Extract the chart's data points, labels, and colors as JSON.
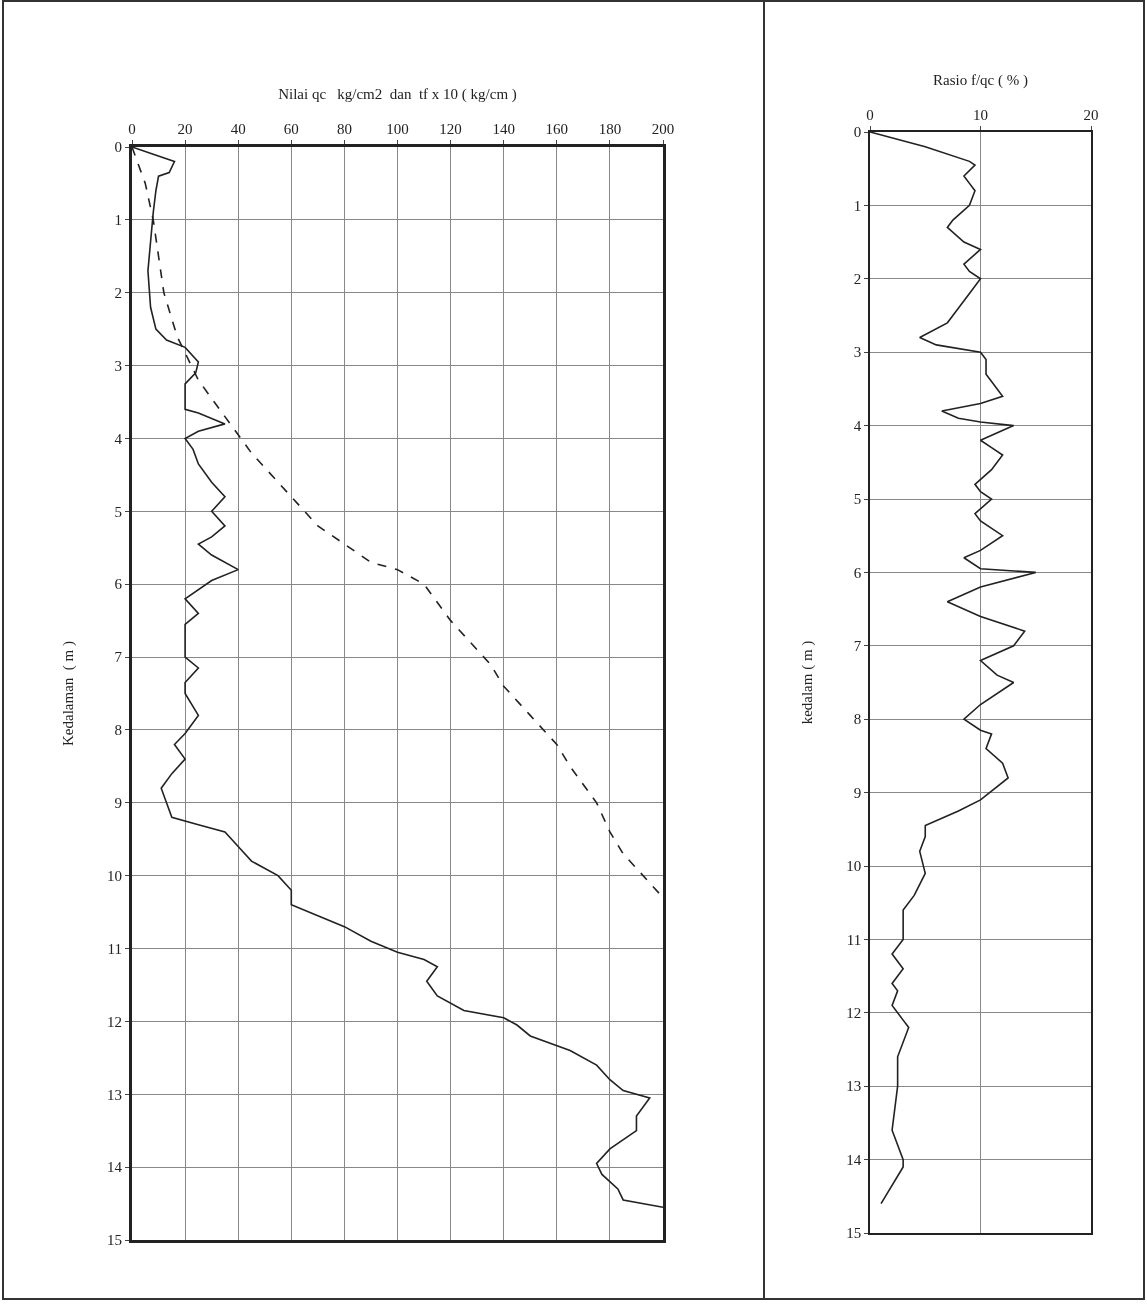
{
  "chart_data": [
    {
      "type": "line",
      "xlabel": "Nilai qc   kg/cm2  dan  tf x 10 ( kg/cm )",
      "ylabel": "Kedalaman  ( m )",
      "xlim": [
        0,
        200
      ],
      "xticks": [
        0,
        20,
        40,
        60,
        80,
        100,
        120,
        140,
        160,
        180,
        200
      ],
      "ylim": [
        15,
        0
      ],
      "yticks": [
        0,
        1,
        2,
        3,
        4,
        5,
        6,
        7,
        8,
        9,
        10,
        11,
        12,
        13,
        14,
        15
      ],
      "grid": true,
      "series": [
        {
          "color": "#222222",
          "line_style": "solid",
          "x": [
            0,
            8,
            16,
            14,
            10,
            9,
            8,
            7,
            6,
            7,
            9,
            13,
            20,
            25,
            24,
            20,
            20,
            25,
            35,
            25,
            20,
            23,
            25,
            30,
            35,
            30,
            35,
            30,
            25,
            30,
            40,
            30,
            20,
            25,
            20,
            20,
            25,
            20,
            20,
            25,
            20,
            16,
            20,
            15,
            11,
            13,
            15,
            25,
            35,
            40,
            45,
            55,
            60,
            60,
            70,
            80,
            90,
            100,
            110,
            115,
            111,
            115,
            125,
            140,
            145,
            150,
            165,
            175,
            180,
            185,
            195,
            190,
            190,
            180,
            175,
            177,
            183,
            185,
            200
          ],
          "values": [
            0,
            0.1,
            0.2,
            0.35,
            0.4,
            0.6,
            0.9,
            1.3,
            1.7,
            2.2,
            2.5,
            2.65,
            2.75,
            2.95,
            3.1,
            3.25,
            3.6,
            3.65,
            3.8,
            3.9,
            4.0,
            4.15,
            4.35,
            4.6,
            4.8,
            5.0,
            5.2,
            5.35,
            5.45,
            5.6,
            5.8,
            5.95,
            6.2,
            6.4,
            6.55,
            7.0,
            7.15,
            7.35,
            7.5,
            7.8,
            8.05,
            8.2,
            8.4,
            8.6,
            8.8,
            9.0,
            9.2,
            9.3,
            9.4,
            9.6,
            9.8,
            10.0,
            10.2,
            10.4,
            10.55,
            10.7,
            10.9,
            11.05,
            11.15,
            11.25,
            11.45,
            11.65,
            11.85,
            11.95,
            12.05,
            12.2,
            12.4,
            12.6,
            12.8,
            12.95,
            13.05,
            13.3,
            13.5,
            13.75,
            13.95,
            14.1,
            14.3,
            14.45,
            14.55
          ]
        },
        {
          "color": "#222222",
          "line_style": "dashed",
          "x": [
            0,
            5,
            8,
            12,
            17,
            25,
            35,
            45,
            60,
            70,
            90,
            100,
            110,
            120,
            135,
            140,
            150,
            160,
            165,
            175,
            180,
            185,
            195,
            200
          ],
          "values": [
            0,
            0.5,
            1,
            2,
            2.6,
            3.2,
            3.7,
            4.2,
            4.8,
            5.2,
            5.7,
            5.8,
            6.0,
            6.5,
            7.1,
            7.4,
            7.8,
            8.2,
            8.5,
            9.0,
            9.4,
            9.7,
            10.1,
            10.3
          ]
        }
      ]
    },
    {
      "type": "line",
      "xlabel": "Rasio f/qc ( % )",
      "ylabel": "kedalam ( m )",
      "xlim": [
        0,
        20
      ],
      "xticks": [
        0,
        10,
        20
      ],
      "ylim": [
        15,
        0
      ],
      "yticks": [
        0,
        1,
        2,
        3,
        4,
        5,
        6,
        7,
        8,
        9,
        10,
        11,
        12,
        13,
        14,
        15
      ],
      "grid": true,
      "series": [
        {
          "color": "#222222",
          "line_style": "solid",
          "x": [
            0,
            5,
            9,
            9.5,
            8.5,
            9,
            9.5,
            9,
            7.5,
            7,
            8.5,
            10,
            8.5,
            9,
            10,
            9,
            7.5,
            7,
            4.5,
            6,
            10,
            10.5,
            10.5,
            11,
            12,
            10,
            6.5,
            8,
            10,
            13,
            10,
            11,
            12,
            11,
            9.5,
            10,
            11,
            9.5,
            10,
            12,
            10,
            8.5,
            10,
            15,
            10,
            7,
            10,
            14,
            13,
            10,
            11.5,
            13,
            10,
            8.5,
            10,
            11,
            10.5,
            12,
            12.5,
            10,
            8,
            5,
            5,
            4.5,
            5,
            4,
            3,
            3,
            2,
            3,
            2,
            2.5,
            2,
            3,
            3.5,
            2.5,
            2.5,
            2,
            3,
            3,
            1
          ],
          "values": [
            0,
            0.2,
            0.4,
            0.45,
            0.6,
            0.7,
            0.8,
            1.0,
            1.2,
            1.3,
            1.5,
            1.6,
            1.8,
            1.9,
            2.0,
            2.2,
            2.5,
            2.6,
            2.8,
            2.9,
            3.0,
            3.1,
            3.3,
            3.4,
            3.6,
            3.7,
            3.8,
            3.9,
            3.95,
            4.0,
            4.2,
            4.3,
            4.4,
            4.6,
            4.8,
            4.9,
            5.0,
            5.2,
            5.3,
            5.5,
            5.7,
            5.8,
            5.95,
            6.0,
            6.2,
            6.4,
            6.6,
            6.8,
            7.0,
            7.2,
            7.4,
            7.5,
            7.8,
            8.0,
            8.15,
            8.2,
            8.4,
            8.6,
            8.8,
            9.1,
            9.25,
            9.45,
            9.6,
            9.8,
            10.1,
            10.4,
            10.6,
            11.0,
            11.2,
            11.4,
            11.6,
            11.7,
            11.9,
            12.1,
            12.2,
            12.6,
            13.0,
            13.6,
            14.0,
            14.1,
            14.6
          ]
        }
      ]
    }
  ]
}
